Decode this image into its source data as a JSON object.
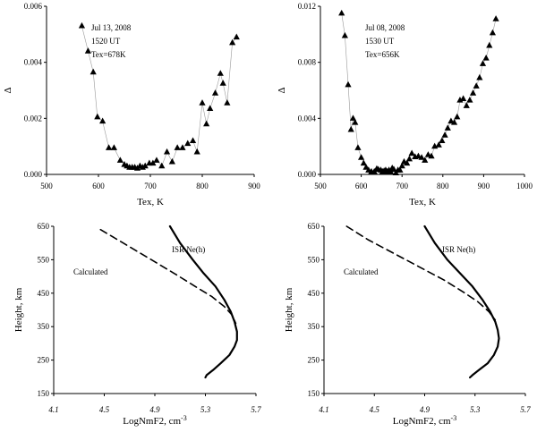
{
  "chart_data": [
    {
      "type": "scatter",
      "title": "",
      "xlabel": "Tex, K",
      "ylabel": "Δ",
      "xlim": [
        500,
        900
      ],
      "ylim": [
        0,
        0.006
      ],
      "xticks": [
        "500",
        "600",
        "700",
        "800",
        "900"
      ],
      "yticks": [
        "0.000",
        "0.002",
        "0.004",
        "0.006"
      ],
      "annotations": [
        "Jul 13, 2008",
        "1520 UT",
        "Tex=678K"
      ],
      "marker": "triangle",
      "series": [
        {
          "x": [
            568,
            580,
            590,
            598,
            608,
            620,
            630,
            642,
            650,
            655,
            660,
            665,
            670,
            675,
            680,
            685,
            690,
            698,
            705,
            712,
            722,
            732,
            742,
            752,
            762,
            772,
            782,
            790,
            800,
            808,
            815,
            825,
            835,
            840,
            848,
            858,
            866
          ],
          "y": [
            0.0053,
            0.0044,
            0.00365,
            0.00205,
            0.0019,
            0.00095,
            0.00095,
            0.0005,
            0.00035,
            0.0003,
            0.00025,
            0.00025,
            0.00025,
            0.00022,
            0.0003,
            0.00025,
            0.0003,
            0.0004,
            0.0004,
            0.0005,
            0.0003,
            0.0008,
            0.00045,
            0.00095,
            0.00095,
            0.0011,
            0.0012,
            0.0008,
            0.00255,
            0.0018,
            0.00235,
            0.0029,
            0.0036,
            0.00325,
            0.00255,
            0.0047,
            0.0049
          ]
        }
      ]
    },
    {
      "type": "scatter",
      "title": "",
      "xlabel": "Tex, K",
      "ylabel": "Δ",
      "xlim": [
        500,
        1000
      ],
      "ylim": [
        0,
        0.012
      ],
      "xticks": [
        "500",
        "600",
        "700",
        "800",
        "900",
        "1000"
      ],
      "yticks": [
        "0.000",
        "0.004",
        "0.008",
        "0.012"
      ],
      "annotations": [
        "Jul 08, 2008",
        "1530 UT",
        "Tex=656K"
      ],
      "marker": "triangle",
      "series": [
        {
          "x": [
            552,
            560,
            568,
            575,
            580,
            585,
            592,
            600,
            606,
            612,
            618,
            625,
            632,
            638,
            642,
            648,
            652,
            656,
            660,
            664,
            668,
            672,
            676,
            680,
            685,
            690,
            695,
            700,
            705,
            712,
            718,
            724,
            732,
            740,
            748,
            756,
            764,
            772,
            780,
            790,
            798,
            805,
            812,
            820,
            828,
            835,
            842,
            850,
            858,
            866,
            874,
            882,
            890,
            898,
            906,
            914,
            922,
            930
          ],
          "y": [
            0.0115,
            0.0099,
            0.0064,
            0.0032,
            0.004,
            0.0037,
            0.0019,
            0.0012,
            0.0008,
            0.0005,
            0.0003,
            0.0002,
            0.0002,
            0.0004,
            0.00035,
            0.0003,
            0.0002,
            0.00025,
            0.0003,
            0.0002,
            0.0003,
            0.0002,
            0.00045,
            0.00035,
            0.0001,
            0.0003,
            0.0003,
            0.0006,
            0.0009,
            0.0008,
            0.0011,
            0.0015,
            0.00125,
            0.0013,
            0.0012,
            0.001,
            0.0014,
            0.0013,
            0.002,
            0.0021,
            0.0024,
            0.0028,
            0.0033,
            0.0038,
            0.0037,
            0.0041,
            0.0053,
            0.0054,
            0.0049,
            0.0053,
            0.0058,
            0.0063,
            0.0069,
            0.0079,
            0.0083,
            0.0092,
            0.0101,
            0.0111
          ]
        }
      ]
    },
    {
      "type": "line",
      "title": "",
      "xlabel": "LogNmF2, cm-3",
      "ylabel": "Height, km",
      "xlim": [
        4.1,
        5.7
      ],
      "ylim": [
        150,
        650
      ],
      "xticks": [
        "4.1",
        "4.5",
        "4.9",
        "5.3",
        "5.7"
      ],
      "yticks": [
        "150",
        "250",
        "350",
        "450",
        "550",
        "650"
      ],
      "legend": [
        "ISR Ne(h)",
        "Calculated"
      ],
      "series": [
        {
          "name": "ISR Ne(h)",
          "style": "solid",
          "x": [
            5.02,
            5.1,
            5.2,
            5.28,
            5.38,
            5.45,
            5.5,
            5.53,
            5.55,
            5.55,
            5.53,
            5.49,
            5.42,
            5.36,
            5.31,
            5.3
          ],
          "y": [
            650,
            600,
            550,
            512,
            470,
            430,
            395,
            365,
            335,
            310,
            290,
            265,
            240,
            220,
            205,
            198
          ]
        },
        {
          "name": "Calculated",
          "style": "dashed",
          "x": [
            4.47,
            4.65,
            4.85,
            5.05,
            5.22,
            5.35,
            5.45,
            5.51,
            5.54
          ],
          "y": [
            640,
            600,
            555,
            510,
            470,
            440,
            410,
            385,
            360
          ]
        }
      ]
    },
    {
      "type": "line",
      "title": "",
      "xlabel": "LogNmF2, cm-3",
      "ylabel": "Height, km",
      "xlim": [
        4.1,
        5.7
      ],
      "ylim": [
        150,
        650
      ],
      "xticks": [
        "4.1",
        "4.5",
        "4.9",
        "5.3",
        "5.7"
      ],
      "yticks": [
        "150",
        "250",
        "350",
        "450",
        "550",
        "650"
      ],
      "legend": [
        "ISR Ne(h)",
        "Calculated"
      ],
      "series": [
        {
          "name": "ISR Ne(h)",
          "style": "solid",
          "x": [
            4.9,
            4.98,
            5.08,
            5.18,
            5.28,
            5.36,
            5.42,
            5.46,
            5.48,
            5.49,
            5.48,
            5.45,
            5.4,
            5.33,
            5.28,
            5.26
          ],
          "y": [
            650,
            600,
            550,
            510,
            470,
            430,
            395,
            365,
            340,
            315,
            290,
            265,
            240,
            220,
            205,
            198
          ]
        },
        {
          "name": "Calculated",
          "style": "dashed",
          "x": [
            4.28,
            4.45,
            4.65,
            4.85,
            5.05,
            5.2,
            5.32,
            5.41,
            5.46
          ],
          "y": [
            650,
            610,
            570,
            530,
            490,
            455,
            425,
            395,
            370
          ]
        }
      ]
    }
  ]
}
